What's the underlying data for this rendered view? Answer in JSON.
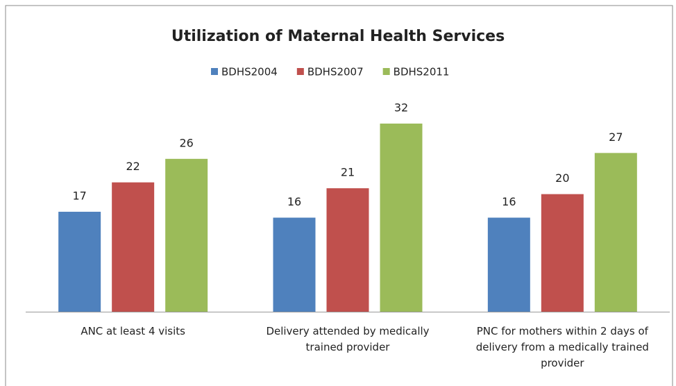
{
  "chart_data": {
    "type": "bar",
    "title": "Utilization of Maternal Health Services",
    "categories": [
      "ANC at least 4 visits",
      "Delivery attended by medically trained provider",
      "PNC for mothers within 2 days of delivery from a medically trained provider"
    ],
    "series": [
      {
        "name": "BDHS2004",
        "color": "#4f81bd",
        "values": [
          17,
          16,
          16
        ]
      },
      {
        "name": "BDHS2007",
        "color": "#c0504d",
        "values": [
          22,
          21,
          20
        ]
      },
      {
        "name": "BDHS2011",
        "color": "#9bbb59",
        "values": [
          26,
          32,
          27
        ]
      }
    ],
    "legend": "top"
  }
}
